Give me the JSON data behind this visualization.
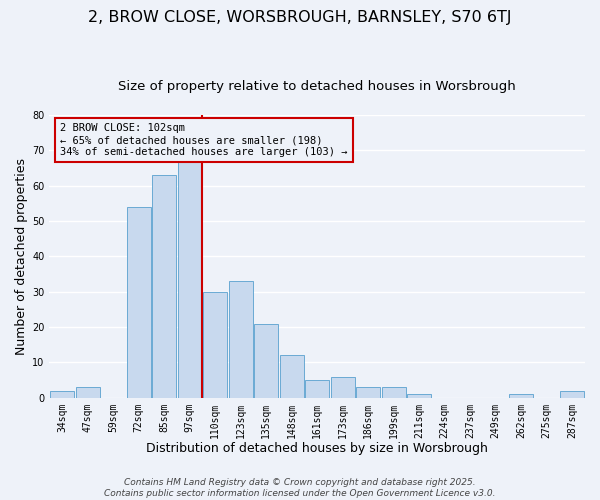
{
  "title": "2, BROW CLOSE, WORSBROUGH, BARNSLEY, S70 6TJ",
  "subtitle": "Size of property relative to detached houses in Worsbrough",
  "xlabel": "Distribution of detached houses by size in Worsbrough",
  "ylabel": "Number of detached properties",
  "categories": [
    "34sqm",
    "47sqm",
    "59sqm",
    "72sqm",
    "85sqm",
    "97sqm",
    "110sqm",
    "123sqm",
    "135sqm",
    "148sqm",
    "161sqm",
    "173sqm",
    "186sqm",
    "199sqm",
    "211sqm",
    "224sqm",
    "237sqm",
    "249sqm",
    "262sqm",
    "275sqm",
    "287sqm"
  ],
  "values": [
    2,
    3,
    0,
    54,
    63,
    67,
    30,
    33,
    21,
    12,
    5,
    6,
    3,
    3,
    1,
    0,
    0,
    0,
    1,
    0,
    2
  ],
  "bar_color": "#c8d9ee",
  "bar_edge_color": "#6aaad4",
  "vline_color": "#cc0000",
  "ylim": [
    0,
    80
  ],
  "yticks": [
    0,
    10,
    20,
    30,
    40,
    50,
    60,
    70,
    80
  ],
  "annotation_title": "2 BROW CLOSE: 102sqm",
  "annotation_line1": "← 65% of detached houses are smaller (198)",
  "annotation_line2": "34% of semi-detached houses are larger (103) →",
  "annotation_box_color": "#cc0000",
  "footer1": "Contains HM Land Registry data © Crown copyright and database right 2025.",
  "footer2": "Contains public sector information licensed under the Open Government Licence v3.0.",
  "background_color": "#eef2f9",
  "grid_color": "#ffffff",
  "title_fontsize": 11.5,
  "subtitle_fontsize": 9.5,
  "axis_label_fontsize": 9,
  "tick_fontsize": 7,
  "annotation_fontsize": 7.5,
  "footer_fontsize": 6.5
}
